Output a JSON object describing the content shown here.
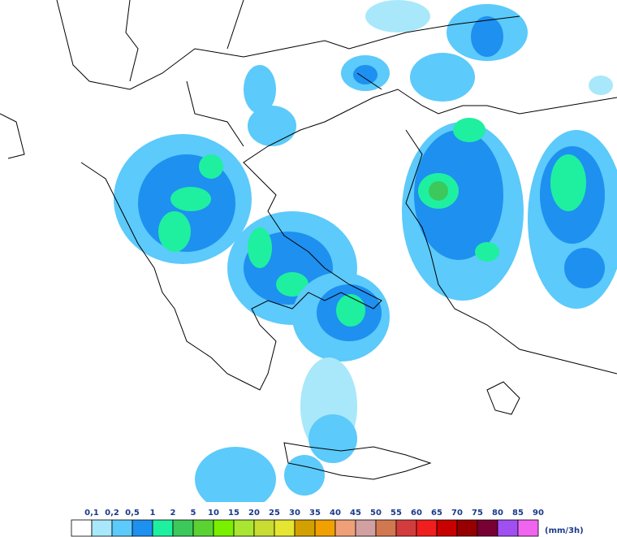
{
  "legend": {
    "labels": [
      "0,1",
      "0,2",
      "0,5",
      "1",
      "2",
      "5",
      "10",
      "15",
      "20",
      "25",
      "30",
      "35",
      "40",
      "45",
      "50",
      "55",
      "60",
      "65",
      "70",
      "75",
      "80",
      "85",
      "90"
    ],
    "colors": [
      "#ffffff",
      "#a8e8fa",
      "#5ccafa",
      "#1e90f0",
      "#1ef0a0",
      "#3cc85a",
      "#5ad232",
      "#78f000",
      "#a8e632",
      "#c8dc32",
      "#e6e632",
      "#d2a000",
      "#f0a000",
      "#f0a078",
      "#d2a0a0",
      "#d27850",
      "#d23c3c",
      "#f01e1e",
      "#c80000",
      "#960000",
      "#780032",
      "#a050f0",
      "#f064f0"
    ],
    "unit": "(mm/3h)"
  }
}
